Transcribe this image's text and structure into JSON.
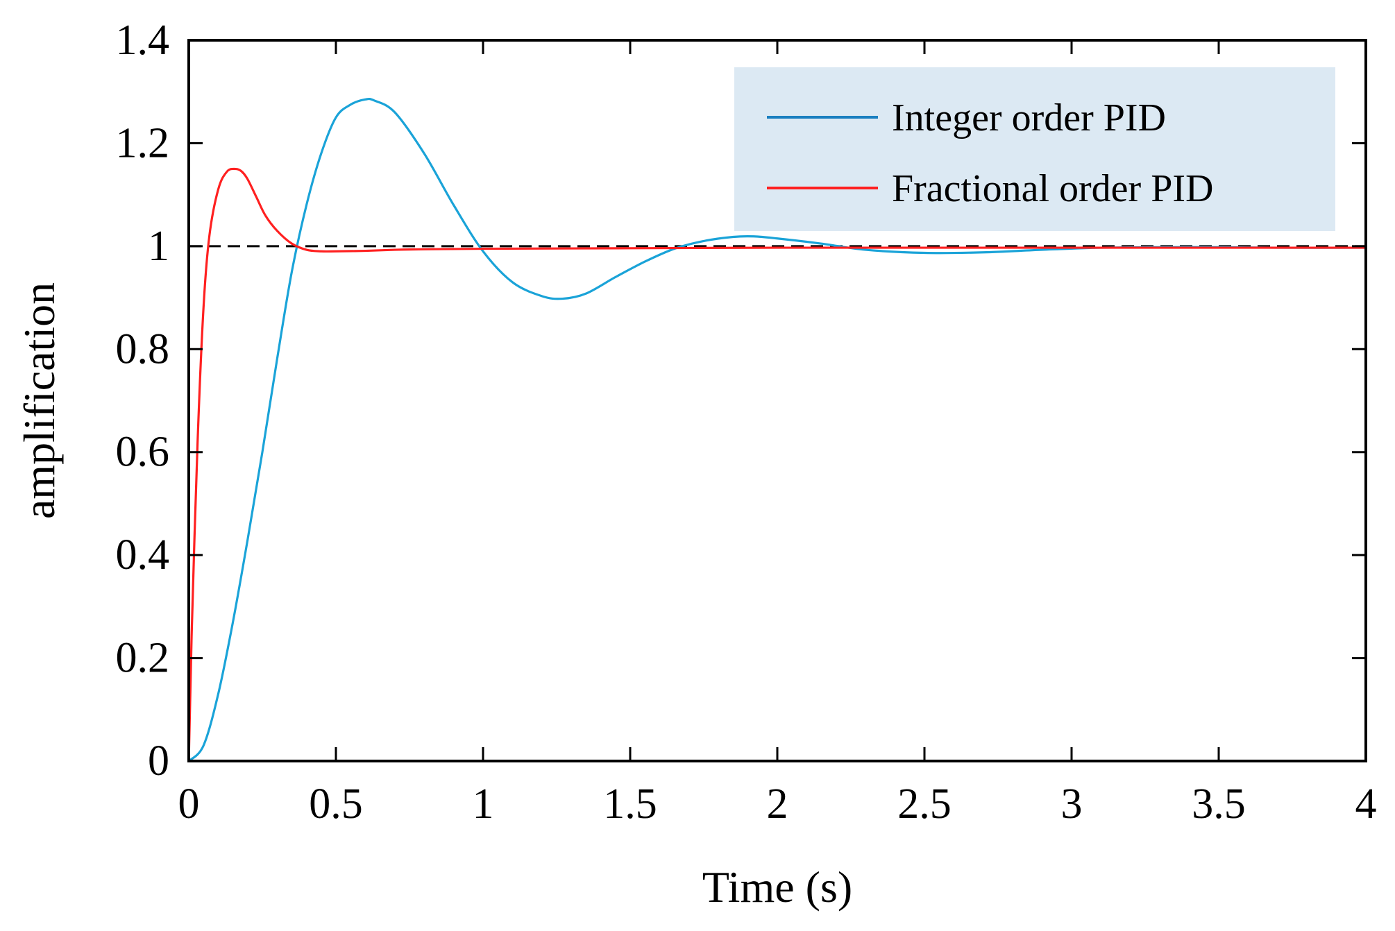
{
  "chart_data": {
    "type": "line",
    "title": "",
    "xlabel": "Time (s)",
    "ylabel": "amplification",
    "xlim": [
      0,
      4
    ],
    "ylim": [
      0,
      1.4
    ],
    "xticks": [
      0,
      0.5,
      1,
      1.5,
      2,
      2.5,
      3,
      3.5,
      4
    ],
    "yticks": [
      0,
      0.2,
      0.4,
      0.6,
      0.8,
      1,
      1.2,
      1.4
    ],
    "xtick_labels": [
      "0",
      "0.5",
      "1",
      "1.5",
      "2",
      "2.5",
      "3",
      "3.5",
      "4"
    ],
    "ytick_labels": [
      "0",
      "0.2",
      "0.4",
      "0.6",
      "0.8",
      "1",
      "1.2",
      "1.4"
    ],
    "grid": false,
    "legend_position": "top-right",
    "reference_line": {
      "y": 1,
      "style": "dashed",
      "color": "#000000"
    },
    "series": [
      {
        "name": "Integer order PID",
        "color": "#1aa3d8",
        "legend_color": "#1a7fc0",
        "x": [
          0,
          0.05,
          0.1,
          0.15,
          0.2,
          0.25,
          0.3,
          0.35,
          0.4,
          0.45,
          0.5,
          0.55,
          0.6,
          0.63,
          0.7,
          0.8,
          0.9,
          1.0,
          1.1,
          1.2,
          1.27,
          1.35,
          1.45,
          1.55,
          1.65,
          1.75,
          1.85,
          1.92,
          2.0,
          2.15,
          2.3,
          2.5,
          2.7,
          2.9,
          3.1,
          3.3,
          3.5,
          3.7,
          4.0
        ],
        "y": [
          0,
          0.03,
          0.13,
          0.27,
          0.43,
          0.6,
          0.78,
          0.95,
          1.08,
          1.18,
          1.25,
          1.275,
          1.285,
          1.283,
          1.26,
          1.18,
          1.08,
          0.99,
          0.93,
          0.903,
          0.898,
          0.908,
          0.94,
          0.97,
          0.995,
          1.01,
          1.018,
          1.019,
          1.015,
          1.005,
          0.993,
          0.987,
          0.988,
          0.993,
          0.997,
          0.998,
          0.998,
          0.997,
          0.997
        ]
      },
      {
        "name": "Fractional order PID",
        "color": "#ff2020",
        "x": [
          0,
          0.01,
          0.03,
          0.05,
          0.07,
          0.1,
          0.13,
          0.16,
          0.18,
          0.2,
          0.23,
          0.26,
          0.3,
          0.35,
          0.4,
          0.45,
          0.5,
          0.6,
          0.7,
          0.8,
          1.0,
          1.5,
          2.0,
          3.0,
          4.0
        ],
        "y": [
          0,
          0.25,
          0.62,
          0.88,
          1.02,
          1.11,
          1.145,
          1.15,
          1.145,
          1.13,
          1.095,
          1.06,
          1.03,
          1.005,
          0.993,
          0.99,
          0.99,
          0.991,
          0.993,
          0.994,
          0.995,
          0.996,
          0.997,
          0.997,
          0.997
        ]
      }
    ]
  }
}
